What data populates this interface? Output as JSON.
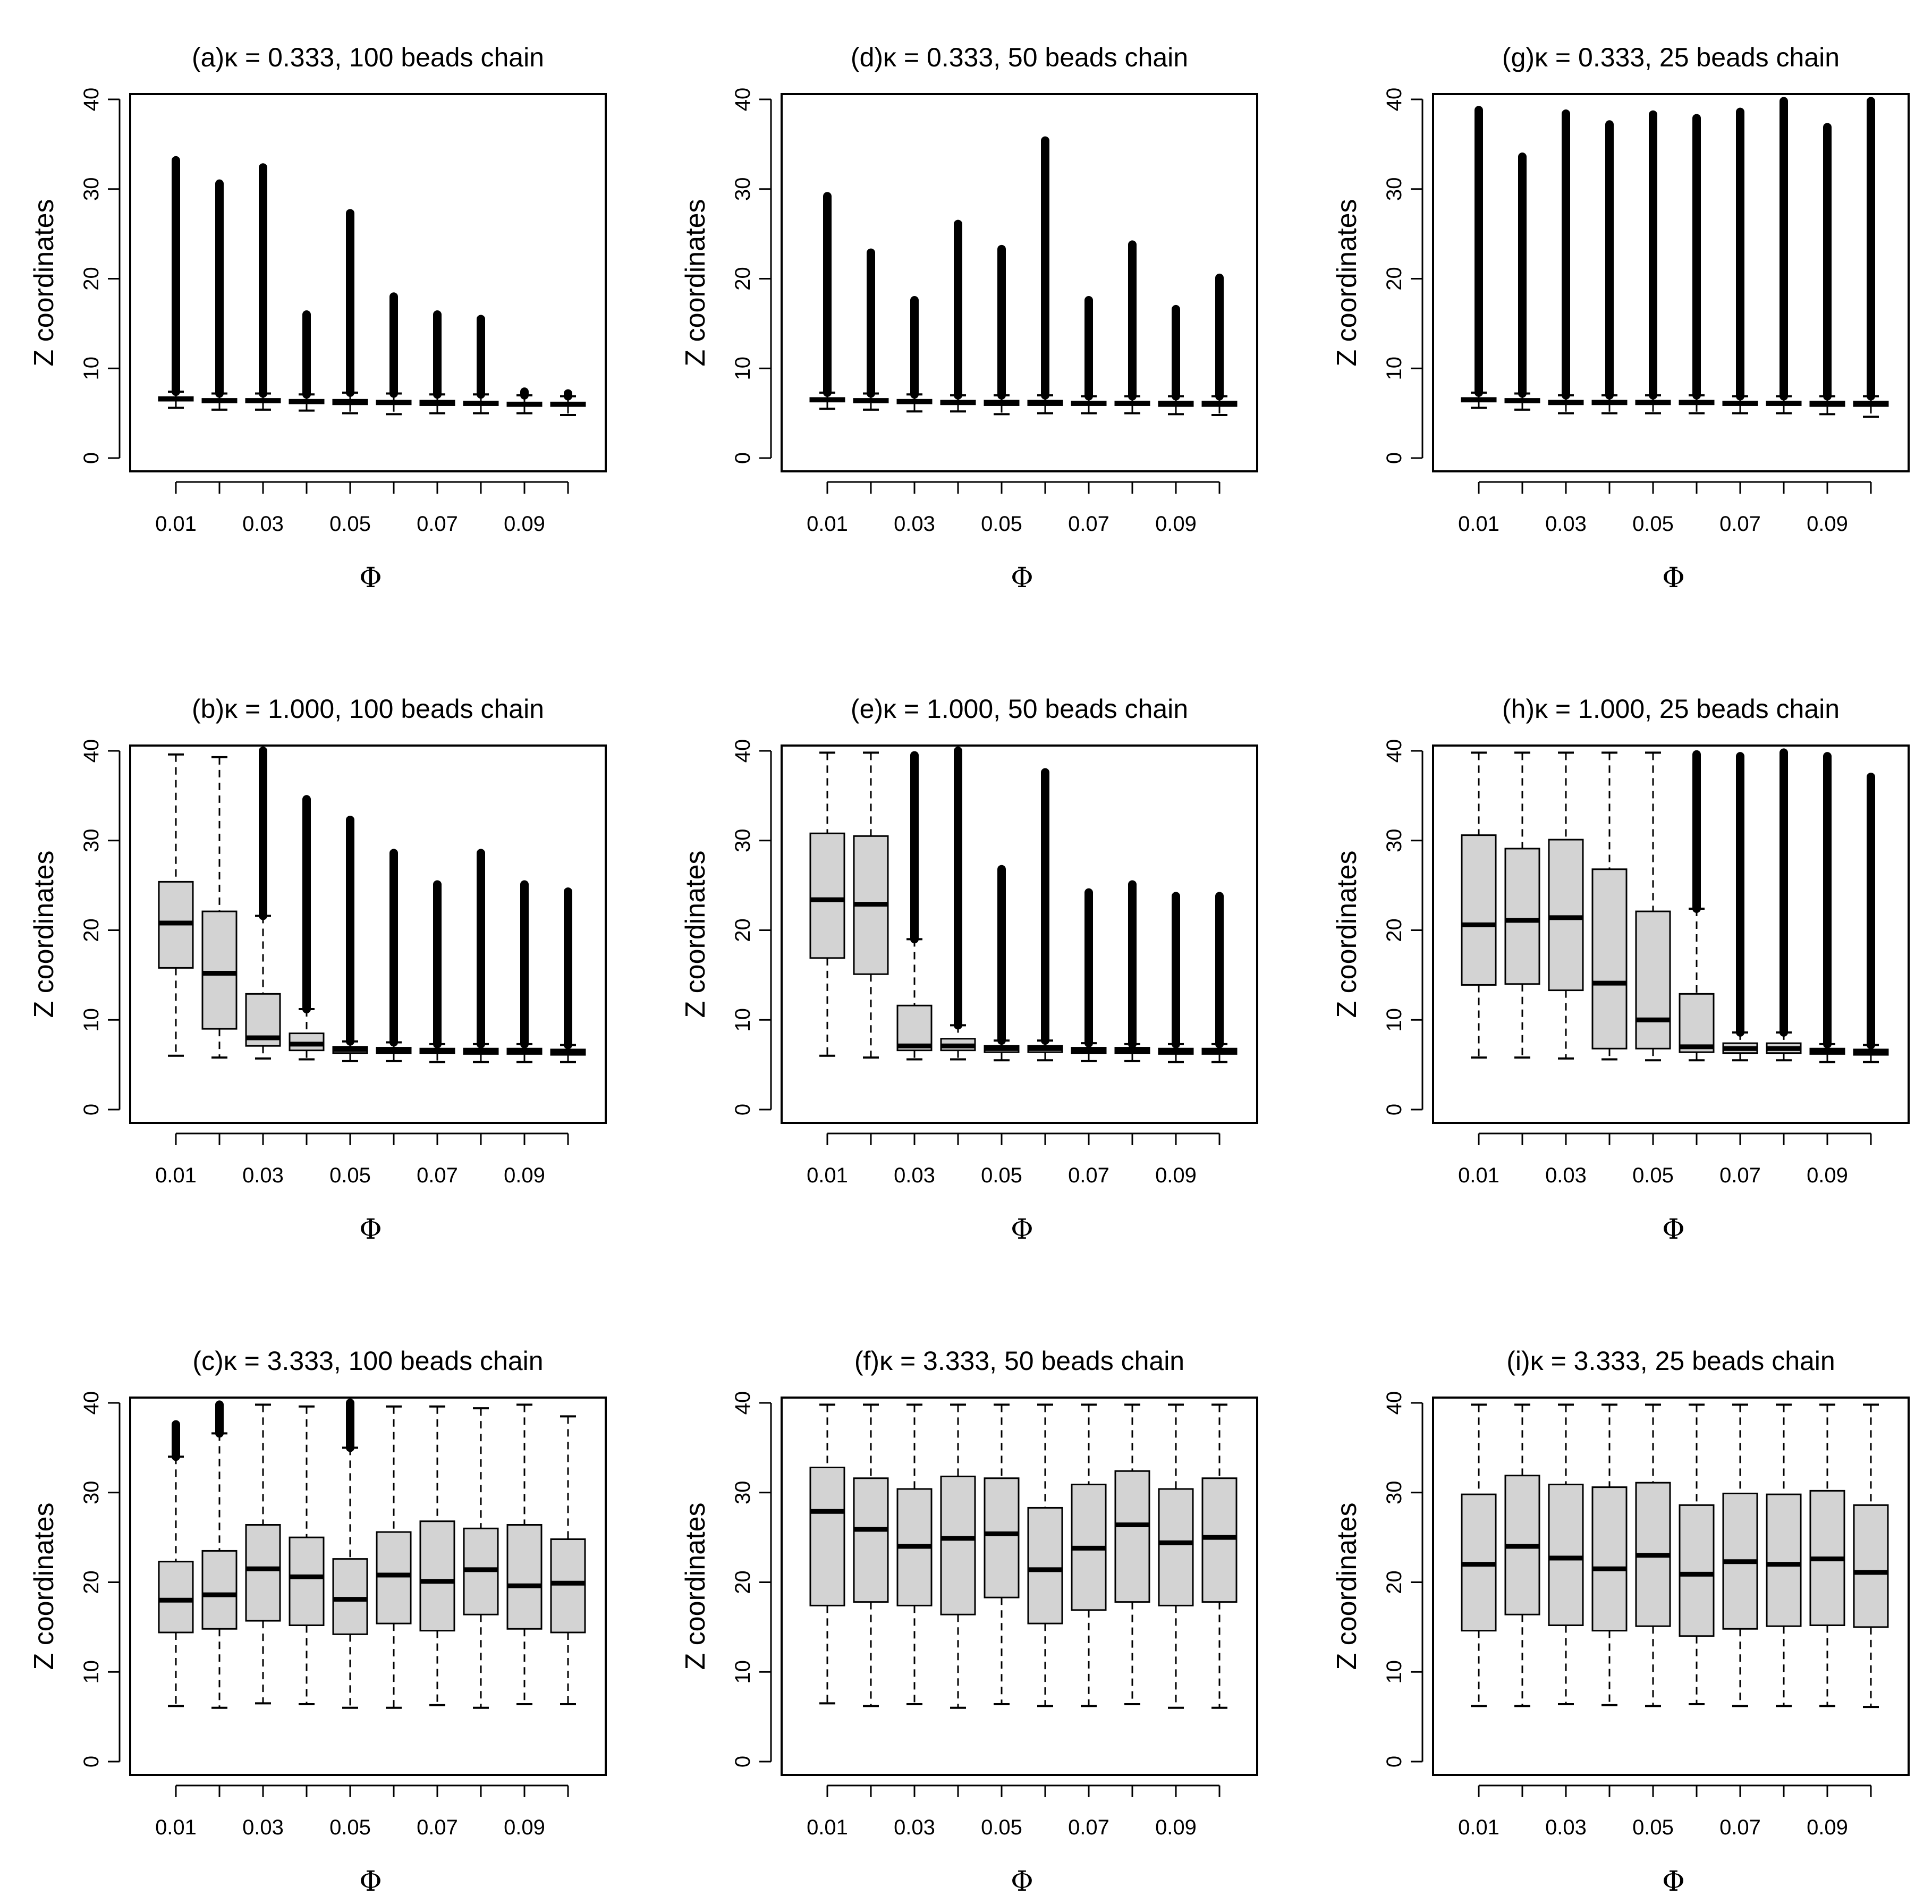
{
  "figure": {
    "ylabel": "Z coordinates",
    "xlabel": "Φ",
    "x_tick_labels": [
      "0.01",
      "0.03",
      "0.05",
      "0.07",
      "0.09"
    ],
    "y_tick_labels": [
      "0",
      "10",
      "20",
      "30",
      "40"
    ],
    "colors": {
      "box_fill": "#d3d3d3",
      "stroke": "#000000"
    }
  },
  "chart_data": [
    {
      "id": "a",
      "type": "boxplot",
      "title": "(a)κ = 0.333, 100 beads chain",
      "xlabel": "Φ",
      "ylabel": "Z coordinates",
      "ylim": [
        0,
        40
      ],
      "categories": [
        0.01,
        0.02,
        0.03,
        0.04,
        0.05,
        0.06,
        0.07,
        0.08,
        0.09,
        0.1
      ],
      "boxes": [
        {
          "min": 5.6,
          "q1": 6.4,
          "median": 6.6,
          "q3": 6.8,
          "max": 7.4,
          "outlier_max": 33.2
        },
        {
          "min": 5.4,
          "q1": 6.2,
          "median": 6.4,
          "q3": 6.6,
          "max": 7.2,
          "outlier_max": 30.6
        },
        {
          "min": 5.4,
          "q1": 6.2,
          "median": 6.4,
          "q3": 6.6,
          "max": 7.2,
          "outlier_max": 32.4
        },
        {
          "min": 5.3,
          "q1": 6.1,
          "median": 6.3,
          "q3": 6.5,
          "max": 7.1,
          "outlier_max": 16.0
        },
        {
          "min": 5.0,
          "q1": 6.0,
          "median": 6.2,
          "q3": 6.5,
          "max": 7.3,
          "outlier_max": 27.3
        },
        {
          "min": 4.9,
          "q1": 6.0,
          "median": 6.2,
          "q3": 6.4,
          "max": 7.2,
          "outlier_max": 18.0
        },
        {
          "min": 5.0,
          "q1": 5.9,
          "median": 6.1,
          "q3": 6.4,
          "max": 7.1,
          "outlier_max": 16.0
        },
        {
          "min": 5.0,
          "q1": 5.9,
          "median": 6.1,
          "q3": 6.3,
          "max": 7.1,
          "outlier_max": 15.5
        },
        {
          "min": 5.0,
          "q1": 5.8,
          "median": 6.0,
          "q3": 6.2,
          "max": 7.0,
          "outlier_max": 7.4
        },
        {
          "min": 4.8,
          "q1": 5.8,
          "median": 6.0,
          "q3": 6.2,
          "max": 6.9,
          "outlier_max": 7.2
        }
      ]
    },
    {
      "id": "b",
      "type": "boxplot",
      "title": "(b)κ = 1.000, 100 beads chain",
      "xlabel": "Φ",
      "ylabel": "Z coordinates",
      "ylim": [
        0,
        40
      ],
      "categories": [
        0.01,
        0.02,
        0.03,
        0.04,
        0.05,
        0.06,
        0.07,
        0.08,
        0.09,
        0.1
      ],
      "boxes": [
        {
          "min": 6.0,
          "q1": 15.8,
          "median": 20.8,
          "q3": 25.4,
          "max": 39.6,
          "outlier_max": 39.6
        },
        {
          "min": 5.8,
          "q1": 9.0,
          "median": 15.2,
          "q3": 22.1,
          "max": 39.3,
          "outlier_max": null
        },
        {
          "min": 5.7,
          "q1": 7.1,
          "median": 8.0,
          "q3": 12.9,
          "max": 21.6,
          "outlier_max": 40.0
        },
        {
          "min": 5.6,
          "q1": 6.6,
          "median": 7.3,
          "q3": 8.5,
          "max": 11.2,
          "outlier_max": 34.6
        },
        {
          "min": 5.4,
          "q1": 6.3,
          "median": 6.7,
          "q3": 7.0,
          "max": 7.6,
          "outlier_max": 32.3
        },
        {
          "min": 5.4,
          "q1": 6.3,
          "median": 6.6,
          "q3": 6.9,
          "max": 7.5,
          "outlier_max": 28.6
        },
        {
          "min": 5.3,
          "q1": 6.3,
          "median": 6.6,
          "q3": 6.8,
          "max": 7.3,
          "outlier_max": 25.1
        },
        {
          "min": 5.3,
          "q1": 6.2,
          "median": 6.5,
          "q3": 6.8,
          "max": 7.3,
          "outlier_max": 28.6
        },
        {
          "min": 5.3,
          "q1": 6.2,
          "median": 6.5,
          "q3": 6.8,
          "max": 7.3,
          "outlier_max": 25.1
        },
        {
          "min": 5.3,
          "q1": 6.1,
          "median": 6.4,
          "q3": 6.7,
          "max": 7.2,
          "outlier_max": 24.3
        }
      ]
    },
    {
      "id": "c",
      "type": "boxplot",
      "title": "(c)κ = 3.333, 100 beads chain",
      "xlabel": "Φ",
      "ylabel": "Z coordinates",
      "ylim": [
        0,
        40
      ],
      "categories": [
        0.01,
        0.02,
        0.03,
        0.04,
        0.05,
        0.06,
        0.07,
        0.08,
        0.09,
        0.1
      ],
      "boxes": [
        {
          "min": 6.2,
          "q1": 14.4,
          "median": 18.0,
          "q3": 22.3,
          "max": 34.0,
          "outlier_max": 37.6
        },
        {
          "min": 6.0,
          "q1": 14.8,
          "median": 18.6,
          "q3": 23.5,
          "max": 36.6,
          "outlier_max": 39.8
        },
        {
          "min": 6.5,
          "q1": 15.7,
          "median": 21.5,
          "q3": 26.4,
          "max": 39.8,
          "outlier_max": null
        },
        {
          "min": 6.4,
          "q1": 15.2,
          "median": 20.6,
          "q3": 25.0,
          "max": 39.6,
          "outlier_max": null
        },
        {
          "min": 6.0,
          "q1": 14.2,
          "median": 18.1,
          "q3": 22.6,
          "max": 35.0,
          "outlier_max": 40.0
        },
        {
          "min": 6.0,
          "q1": 15.4,
          "median": 20.8,
          "q3": 25.6,
          "max": 39.6,
          "outlier_max": null
        },
        {
          "min": 6.3,
          "q1": 14.6,
          "median": 20.1,
          "q3": 26.8,
          "max": 39.6,
          "outlier_max": null
        },
        {
          "min": 6.0,
          "q1": 16.4,
          "median": 21.4,
          "q3": 26.0,
          "max": 39.4,
          "outlier_max": null
        },
        {
          "min": 6.4,
          "q1": 14.8,
          "median": 19.6,
          "q3": 26.4,
          "max": 39.8,
          "outlier_max": null
        },
        {
          "min": 6.4,
          "q1": 14.4,
          "median": 19.9,
          "q3": 24.8,
          "max": 38.5,
          "outlier_max": null
        }
      ]
    },
    {
      "id": "d",
      "type": "boxplot",
      "title": "(d)κ = 0.333, 50 beads chain",
      "xlabel": "Φ",
      "ylabel": "Z coordinates",
      "ylim": [
        0,
        40
      ],
      "categories": [
        0.01,
        0.02,
        0.03,
        0.04,
        0.05,
        0.06,
        0.07,
        0.08,
        0.09,
        0.1
      ],
      "boxes": [
        {
          "min": 5.5,
          "q1": 6.3,
          "median": 6.5,
          "q3": 6.7,
          "max": 7.3,
          "outlier_max": 29.2
        },
        {
          "min": 5.4,
          "q1": 6.2,
          "median": 6.4,
          "q3": 6.6,
          "max": 7.2,
          "outlier_max": 22.9
        },
        {
          "min": 5.2,
          "q1": 6.1,
          "median": 6.3,
          "q3": 6.5,
          "max": 7.1,
          "outlier_max": 17.6
        },
        {
          "min": 5.2,
          "q1": 6.0,
          "median": 6.2,
          "q3": 6.4,
          "max": 7.0,
          "outlier_max": 26.1
        },
        {
          "min": 4.9,
          "q1": 5.9,
          "median": 6.1,
          "q3": 6.4,
          "max": 7.0,
          "outlier_max": 23.3
        },
        {
          "min": 5.0,
          "q1": 5.9,
          "median": 6.1,
          "q3": 6.4,
          "max": 7.0,
          "outlier_max": 35.4
        },
        {
          "min": 5.0,
          "q1": 5.9,
          "median": 6.1,
          "q3": 6.3,
          "max": 6.9,
          "outlier_max": 17.6
        },
        {
          "min": 5.0,
          "q1": 5.9,
          "median": 6.1,
          "q3": 6.3,
          "max": 6.9,
          "outlier_max": 23.8
        },
        {
          "min": 4.9,
          "q1": 5.8,
          "median": 6.0,
          "q3": 6.3,
          "max": 6.9,
          "outlier_max": 16.6
        },
        {
          "min": 4.8,
          "q1": 5.8,
          "median": 6.0,
          "q3": 6.3,
          "max": 6.9,
          "outlier_max": 20.1
        }
      ]
    },
    {
      "id": "e",
      "type": "boxplot",
      "title": "(e)κ = 1.000, 50 beads chain",
      "xlabel": "Φ",
      "ylabel": "Z coordinates",
      "ylim": [
        0,
        40
      ],
      "categories": [
        0.01,
        0.02,
        0.03,
        0.04,
        0.05,
        0.06,
        0.07,
        0.08,
        0.09,
        0.1
      ],
      "boxes": [
        {
          "min": 6.0,
          "q1": 16.9,
          "median": 23.4,
          "q3": 30.8,
          "max": 39.8,
          "outlier_max": null
        },
        {
          "min": 5.8,
          "q1": 15.1,
          "median": 22.9,
          "q3": 30.5,
          "max": 39.8,
          "outlier_max": null
        },
        {
          "min": 5.6,
          "q1": 6.6,
          "median": 7.1,
          "q3": 11.6,
          "max": 19.0,
          "outlier_max": 39.5
        },
        {
          "min": 5.6,
          "q1": 6.6,
          "median": 7.1,
          "q3": 7.9,
          "max": 9.4,
          "outlier_max": 40.0
        },
        {
          "min": 5.5,
          "q1": 6.4,
          "median": 6.8,
          "q3": 7.1,
          "max": 7.7,
          "outlier_max": 26.8
        },
        {
          "min": 5.5,
          "q1": 6.4,
          "median": 6.8,
          "q3": 7.1,
          "max": 7.7,
          "outlier_max": 37.6
        },
        {
          "min": 5.4,
          "q1": 6.3,
          "median": 6.6,
          "q3": 6.9,
          "max": 7.4,
          "outlier_max": 24.2
        },
        {
          "min": 5.4,
          "q1": 6.3,
          "median": 6.6,
          "q3": 6.9,
          "max": 7.3,
          "outlier_max": 25.1
        },
        {
          "min": 5.3,
          "q1": 6.2,
          "median": 6.5,
          "q3": 6.8,
          "max": 7.3,
          "outlier_max": 23.8
        },
        {
          "min": 5.3,
          "q1": 6.2,
          "median": 6.5,
          "q3": 6.8,
          "max": 7.3,
          "outlier_max": 23.8
        }
      ]
    },
    {
      "id": "f",
      "type": "boxplot",
      "title": "(f)κ = 3.333, 50 beads chain",
      "xlabel": "Φ",
      "ylabel": "Z coordinates",
      "ylim": [
        0,
        40
      ],
      "categories": [
        0.01,
        0.02,
        0.03,
        0.04,
        0.05,
        0.06,
        0.07,
        0.08,
        0.09,
        0.1
      ],
      "boxes": [
        {
          "min": 6.5,
          "q1": 17.4,
          "median": 27.9,
          "q3": 32.8,
          "max": 39.8,
          "outlier_max": null
        },
        {
          "min": 6.2,
          "q1": 17.8,
          "median": 25.9,
          "q3": 31.6,
          "max": 39.8,
          "outlier_max": null
        },
        {
          "min": 6.4,
          "q1": 17.4,
          "median": 24.0,
          "q3": 30.4,
          "max": 39.8,
          "outlier_max": null
        },
        {
          "min": 6.0,
          "q1": 16.4,
          "median": 24.9,
          "q3": 31.8,
          "max": 39.8,
          "outlier_max": null
        },
        {
          "min": 6.4,
          "q1": 18.3,
          "median": 25.4,
          "q3": 31.6,
          "max": 39.8,
          "outlier_max": null
        },
        {
          "min": 6.2,
          "q1": 15.4,
          "median": 21.4,
          "q3": 28.3,
          "max": 39.8,
          "outlier_max": null
        },
        {
          "min": 6.2,
          "q1": 16.9,
          "median": 23.8,
          "q3": 30.9,
          "max": 39.8,
          "outlier_max": null
        },
        {
          "min": 6.4,
          "q1": 17.8,
          "median": 26.4,
          "q3": 32.4,
          "max": 39.8,
          "outlier_max": null
        },
        {
          "min": 6.0,
          "q1": 17.4,
          "median": 24.4,
          "q3": 30.4,
          "max": 39.8,
          "outlier_max": null
        },
        {
          "min": 6.0,
          "q1": 17.8,
          "median": 25.0,
          "q3": 31.6,
          "max": 39.8,
          "outlier_max": null
        }
      ]
    },
    {
      "id": "g",
      "type": "boxplot",
      "title": "(g)κ = 0.333, 25 beads chain",
      "xlabel": "Φ",
      "ylabel": "Z coordinates",
      "ylim": [
        0,
        40
      ],
      "categories": [
        0.01,
        0.02,
        0.03,
        0.04,
        0.05,
        0.06,
        0.07,
        0.08,
        0.09,
        0.1
      ],
      "boxes": [
        {
          "min": 5.6,
          "q1": 6.3,
          "median": 6.5,
          "q3": 6.7,
          "max": 7.3,
          "outlier_max": 38.8
        },
        {
          "min": 5.4,
          "q1": 6.2,
          "median": 6.4,
          "q3": 6.6,
          "max": 7.2,
          "outlier_max": 33.6
        },
        {
          "min": 5.0,
          "q1": 6.0,
          "median": 6.2,
          "q3": 6.4,
          "max": 7.0,
          "outlier_max": 38.4
        },
        {
          "min": 5.0,
          "q1": 6.0,
          "median": 6.2,
          "q3": 6.4,
          "max": 7.0,
          "outlier_max": 37.2
        },
        {
          "min": 5.0,
          "q1": 6.0,
          "median": 6.2,
          "q3": 6.4,
          "max": 7.0,
          "outlier_max": 38.3
        },
        {
          "min": 5.0,
          "q1": 6.0,
          "median": 6.2,
          "q3": 6.4,
          "max": 7.0,
          "outlier_max": 37.9
        },
        {
          "min": 5.0,
          "q1": 5.9,
          "median": 6.1,
          "q3": 6.3,
          "max": 6.9,
          "outlier_max": 38.6
        },
        {
          "min": 5.0,
          "q1": 5.9,
          "median": 6.1,
          "q3": 6.3,
          "max": 6.9,
          "outlier_max": 39.8
        },
        {
          "min": 4.9,
          "q1": 5.8,
          "median": 6.0,
          "q3": 6.3,
          "max": 6.9,
          "outlier_max": 36.9
        },
        {
          "min": 4.6,
          "q1": 5.8,
          "median": 6.0,
          "q3": 6.3,
          "max": 6.9,
          "outlier_max": 39.8
        }
      ]
    },
    {
      "id": "h",
      "type": "boxplot",
      "title": "(h)κ = 1.000, 25 beads chain",
      "xlabel": "Φ",
      "ylabel": "Z coordinates",
      "ylim": [
        0,
        40
      ],
      "categories": [
        0.01,
        0.02,
        0.03,
        0.04,
        0.05,
        0.06,
        0.07,
        0.08,
        0.09,
        0.1
      ],
      "boxes": [
        {
          "min": 5.8,
          "q1": 13.9,
          "median": 20.6,
          "q3": 30.6,
          "max": 39.8,
          "outlier_max": null
        },
        {
          "min": 5.8,
          "q1": 14.0,
          "median": 21.1,
          "q3": 29.1,
          "max": 39.8,
          "outlier_max": null
        },
        {
          "min": 5.7,
          "q1": 13.3,
          "median": 21.4,
          "q3": 30.1,
          "max": 39.8,
          "outlier_max": null
        },
        {
          "min": 5.6,
          "q1": 6.8,
          "median": 14.1,
          "q3": 26.8,
          "max": 39.8,
          "outlier_max": null
        },
        {
          "min": 5.5,
          "q1": 6.8,
          "median": 10.0,
          "q3": 22.1,
          "max": 39.8,
          "outlier_max": null
        },
        {
          "min": 5.5,
          "q1": 6.4,
          "median": 7.0,
          "q3": 12.9,
          "max": 22.4,
          "outlier_max": 39.6
        },
        {
          "min": 5.5,
          "q1": 6.3,
          "median": 6.8,
          "q3": 7.4,
          "max": 8.6,
          "outlier_max": 39.4
        },
        {
          "min": 5.5,
          "q1": 6.3,
          "median": 6.8,
          "q3": 7.4,
          "max": 8.6,
          "outlier_max": 39.8
        },
        {
          "min": 5.3,
          "q1": 6.2,
          "median": 6.5,
          "q3": 6.8,
          "max": 7.3,
          "outlier_max": 39.4
        },
        {
          "min": 5.3,
          "q1": 6.1,
          "median": 6.4,
          "q3": 6.7,
          "max": 7.2,
          "outlier_max": 37.1
        }
      ]
    },
    {
      "id": "i",
      "type": "boxplot",
      "title": "(i)κ = 3.333, 25 beads chain",
      "xlabel": "Φ",
      "ylabel": "Z coordinates",
      "ylim": [
        0,
        40
      ],
      "categories": [
        0.01,
        0.02,
        0.03,
        0.04,
        0.05,
        0.06,
        0.07,
        0.08,
        0.09,
        0.1
      ],
      "boxes": [
        {
          "min": 6.2,
          "q1": 14.6,
          "median": 22.0,
          "q3": 29.8,
          "max": 39.8,
          "outlier_max": null
        },
        {
          "min": 6.2,
          "q1": 16.4,
          "median": 24.0,
          "q3": 31.9,
          "max": 39.8,
          "outlier_max": null
        },
        {
          "min": 6.4,
          "q1": 15.2,
          "median": 22.7,
          "q3": 30.9,
          "max": 39.8,
          "outlier_max": null
        },
        {
          "min": 6.3,
          "q1": 14.6,
          "median": 21.5,
          "q3": 30.6,
          "max": 39.8,
          "outlier_max": null
        },
        {
          "min": 6.2,
          "q1": 15.1,
          "median": 23.0,
          "q3": 31.1,
          "max": 39.8,
          "outlier_max": null
        },
        {
          "min": 6.4,
          "q1": 14.0,
          "median": 20.9,
          "q3": 28.6,
          "max": 39.8,
          "outlier_max": null
        },
        {
          "min": 6.2,
          "q1": 14.8,
          "median": 22.3,
          "q3": 29.9,
          "max": 39.8,
          "outlier_max": null
        },
        {
          "min": 6.2,
          "q1": 15.1,
          "median": 22.0,
          "q3": 29.8,
          "max": 39.8,
          "outlier_max": null
        },
        {
          "min": 6.2,
          "q1": 15.2,
          "median": 22.6,
          "q3": 30.2,
          "max": 39.8,
          "outlier_max": null
        },
        {
          "min": 6.1,
          "q1": 15.0,
          "median": 21.1,
          "q3": 28.6,
          "max": 39.8,
          "outlier_max": null
        }
      ]
    }
  ]
}
